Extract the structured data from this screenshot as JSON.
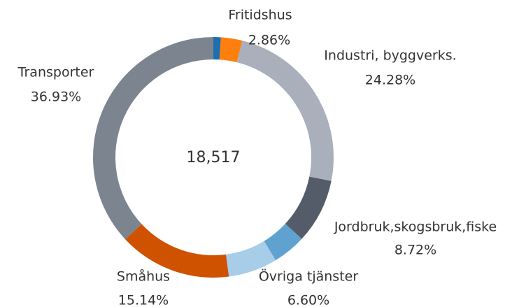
{
  "chart_data": {
    "type": "donut",
    "center_label": "18,517",
    "categories": [
      null,
      "Fritidshus",
      "Industri, byggverks.",
      "Jordbruk,skogsbruk,fiske",
      null,
      "Övriga tjänster",
      "Småhus",
      "Transporter"
    ],
    "values": [
      1.0,
      2.86,
      24.28,
      8.72,
      4.47,
      6.6,
      15.14,
      36.93
    ],
    "value_labels": [
      null,
      "2.86%",
      "24.28%",
      "8.72%",
      null,
      "6.60%",
      "15.14%",
      "36.93%"
    ],
    "colors": [
      "#1f6fb0",
      "#ff7f0e",
      "#a9b0bb",
      "#555c69",
      "#5fa2cf",
      "#a8cde9",
      "#cf5200",
      "#7c8490"
    ]
  }
}
